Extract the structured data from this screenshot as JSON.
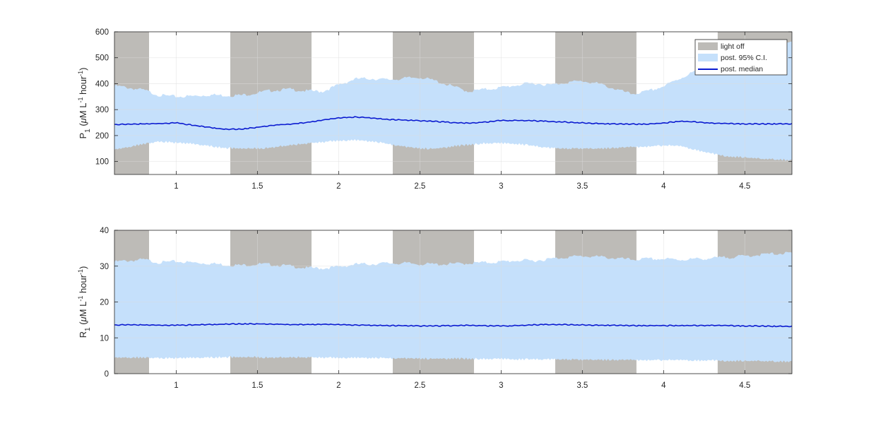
{
  "colors": {
    "light_off": "#bdbbb7",
    "ci_band": "#c5e0fb",
    "median": "#0b1bd0",
    "axis": "#262626",
    "grid": "#dcdcdc"
  },
  "legend": {
    "placement": "top-right (upper panel)",
    "items": [
      {
        "label": "light off",
        "color": "#bdbbb7",
        "kind": "patch"
      },
      {
        "label": "post. 95% C.I.",
        "color": "#c5e0fb",
        "kind": "patch"
      },
      {
        "label": "post. median",
        "color": "#0b1bd0",
        "kind": "line"
      }
    ]
  },
  "chart_data": [
    {
      "type": "area",
      "ylabel": {
        "symbol": "P",
        "sub": "1",
        "open": " (",
        "mu": "μ",
        "unit": "M L",
        "exp1": "-1",
        "mid": " hour",
        "exp2": "-1",
        "close": ")"
      },
      "xlabel": "",
      "xlim": [
        0.62,
        4.79
      ],
      "ylim": [
        50,
        600
      ],
      "xticks": [
        1,
        1.5,
        2,
        2.5,
        3,
        3.5,
        4,
        4.5
      ],
      "xtick_labels": [
        "1",
        "1.5",
        "2",
        "2.5",
        "3",
        "3.5",
        "4",
        "4.5"
      ],
      "yticks": [
        100,
        200,
        300,
        400,
        500,
        600
      ],
      "ytick_labels": [
        "100",
        "200",
        "300",
        "400",
        "500",
        "600"
      ],
      "grid": true,
      "light_off_intervals": [
        [
          0.62,
          0.833
        ],
        [
          1.333,
          1.833
        ],
        [
          2.333,
          2.833
        ],
        [
          3.333,
          3.833
        ],
        [
          4.333,
          4.79
        ]
      ],
      "series": [
        {
          "name": "post. 95% C.I.",
          "x": [
            0.62,
            0.7,
            0.8,
            0.9,
            1.0,
            1.1,
            1.2,
            1.3,
            1.4,
            1.5,
            1.6,
            1.7,
            1.8,
            1.9,
            2.0,
            2.1,
            2.2,
            2.3,
            2.4,
            2.5,
            2.6,
            2.7,
            2.8,
            2.9,
            3.0,
            3.1,
            3.2,
            3.3,
            3.4,
            3.5,
            3.6,
            3.7,
            3.8,
            3.9,
            4.0,
            4.1,
            4.2,
            4.3,
            4.4,
            4.5,
            4.6,
            4.7,
            4.79
          ],
          "lower": [
            145,
            155,
            168,
            178,
            172,
            168,
            160,
            152,
            150,
            150,
            155,
            162,
            170,
            175,
            180,
            182,
            178,
            168,
            158,
            150,
            150,
            158,
            165,
            170,
            170,
            168,
            160,
            152,
            150,
            150,
            150,
            152,
            155,
            158,
            162,
            160,
            145,
            130,
            120,
            115,
            110,
            108,
            105
          ],
          "upper": [
            392,
            385,
            375,
            355,
            350,
            352,
            357,
            355,
            355,
            365,
            375,
            378,
            372,
            370,
            395,
            418,
            420,
            415,
            420,
            425,
            410,
            390,
            370,
            378,
            385,
            395,
            402,
            395,
            405,
            410,
            400,
            380,
            360,
            370,
            390,
            420,
            450,
            470,
            480,
            495,
            515,
            540,
            560
          ]
        },
        {
          "name": "post. median",
          "x": [
            0.62,
            0.7,
            0.8,
            0.9,
            1.0,
            1.1,
            1.2,
            1.3,
            1.4,
            1.5,
            1.6,
            1.7,
            1.8,
            1.9,
            2.0,
            2.1,
            2.2,
            2.3,
            2.4,
            2.5,
            2.6,
            2.7,
            2.8,
            2.9,
            3.0,
            3.1,
            3.2,
            3.3,
            3.4,
            3.5,
            3.6,
            3.7,
            3.8,
            3.9,
            4.0,
            4.1,
            4.2,
            4.3,
            4.4,
            4.5,
            4.6,
            4.7,
            4.79
          ],
          "values": [
            243,
            243,
            245,
            246,
            249,
            240,
            232,
            224,
            225,
            232,
            240,
            244,
            250,
            260,
            268,
            272,
            268,
            262,
            260,
            257,
            254,
            250,
            248,
            252,
            258,
            258,
            257,
            254,
            252,
            249,
            246,
            245,
            244,
            244,
            248,
            255,
            252,
            248,
            246,
            245,
            245,
            245,
            245
          ]
        }
      ]
    },
    {
      "type": "area",
      "ylabel": {
        "symbol": "R",
        "sub": "1",
        "open": " (",
        "mu": "μ",
        "unit": "M L",
        "exp1": "-1",
        "mid": " hour",
        "exp2": "-1",
        "close": ")"
      },
      "xlabel": "",
      "xlim": [
        0.62,
        4.79
      ],
      "ylim": [
        0,
        40
      ],
      "xticks": [
        1,
        1.5,
        2,
        2.5,
        3,
        3.5,
        4,
        4.5
      ],
      "xtick_labels": [
        "1",
        "1.5",
        "2",
        "2.5",
        "3",
        "3.5",
        "4",
        "4.5"
      ],
      "yticks": [
        0,
        10,
        20,
        30,
        40
      ],
      "ytick_labels": [
        "0",
        "10",
        "20",
        "30",
        "40"
      ],
      "grid": true,
      "light_off_intervals": [
        [
          0.62,
          0.833
        ],
        [
          1.333,
          1.833
        ],
        [
          2.333,
          2.833
        ],
        [
          3.333,
          3.833
        ],
        [
          4.333,
          4.79
        ]
      ],
      "series": [
        {
          "name": "post. 95% C.I.",
          "x": [
            0.62,
            0.7,
            0.8,
            0.9,
            1.0,
            1.1,
            1.2,
            1.3,
            1.4,
            1.5,
            1.6,
            1.7,
            1.8,
            1.9,
            2.0,
            2.1,
            2.2,
            2.3,
            2.4,
            2.5,
            2.6,
            2.7,
            2.8,
            2.9,
            3.0,
            3.1,
            3.2,
            3.3,
            3.4,
            3.5,
            3.6,
            3.7,
            3.8,
            3.9,
            4.0,
            4.1,
            4.2,
            4.3,
            4.4,
            4.5,
            4.6,
            4.7,
            4.79
          ],
          "lower": [
            4.4,
            4.5,
            4.5,
            4.4,
            4.3,
            4.4,
            4.5,
            4.6,
            4.6,
            4.6,
            4.5,
            4.5,
            4.6,
            4.5,
            4.4,
            4.4,
            4.4,
            4.3,
            4.3,
            4.2,
            4.2,
            4.2,
            4.2,
            4.1,
            4.1,
            4.0,
            4.0,
            4.0,
            4.0,
            3.9,
            3.9,
            3.8,
            3.8,
            3.8,
            3.8,
            3.8,
            3.7,
            3.7,
            3.6,
            3.5,
            3.5,
            3.4,
            3.4
          ],
          "upper": [
            31.2,
            31.5,
            31.8,
            31.0,
            31.3,
            31.0,
            30.8,
            30.4,
            30.2,
            30.6,
            30.4,
            30.0,
            29.5,
            29.4,
            29.8,
            30.5,
            30.6,
            30.8,
            30.8,
            30.6,
            30.5,
            30.6,
            30.8,
            31.0,
            31.2,
            31.6,
            31.5,
            32.0,
            32.5,
            32.8,
            32.6,
            32.2,
            31.8,
            32.0,
            32.0,
            31.8,
            32.0,
            32.2,
            32.5,
            32.8,
            33.2,
            33.5,
            33.6
          ]
        },
        {
          "name": "post. median",
          "x": [
            0.62,
            0.7,
            0.8,
            0.9,
            1.0,
            1.1,
            1.2,
            1.3,
            1.4,
            1.5,
            1.6,
            1.7,
            1.8,
            1.9,
            2.0,
            2.1,
            2.2,
            2.3,
            2.4,
            2.5,
            2.6,
            2.7,
            2.8,
            2.9,
            3.0,
            3.1,
            3.2,
            3.3,
            3.4,
            3.5,
            3.6,
            3.7,
            3.8,
            3.9,
            4.0,
            4.1,
            4.2,
            4.3,
            4.4,
            4.5,
            4.6,
            4.7,
            4.79
          ],
          "values": [
            13.6,
            13.6,
            13.6,
            13.5,
            13.5,
            13.6,
            13.7,
            13.8,
            13.9,
            13.9,
            13.8,
            13.7,
            13.7,
            13.8,
            13.7,
            13.6,
            13.5,
            13.4,
            13.4,
            13.3,
            13.3,
            13.4,
            13.5,
            13.4,
            13.3,
            13.4,
            13.6,
            13.7,
            13.7,
            13.6,
            13.5,
            13.5,
            13.4,
            13.4,
            13.4,
            13.4,
            13.4,
            13.5,
            13.4,
            13.3,
            13.3,
            13.2,
            13.2
          ]
        }
      ]
    }
  ]
}
